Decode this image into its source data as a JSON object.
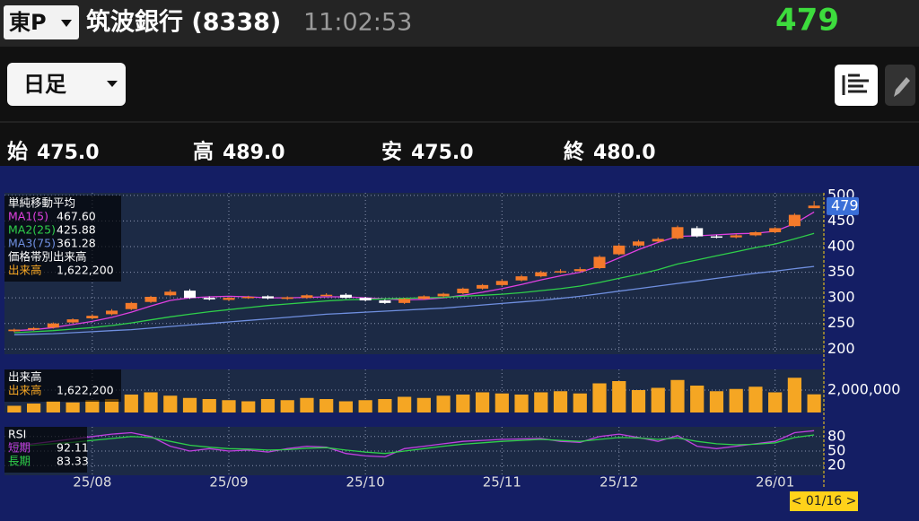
{
  "header": {
    "market": "東P",
    "name": "筑波銀行 (8338)",
    "time": "11:02:53",
    "price": 479
  },
  "toolbar": {
    "period": "日足"
  },
  "ohlc": [
    {
      "label": "始",
      "value": "475.0"
    },
    {
      "label": "高",
      "value": "489.0"
    },
    {
      "label": "安",
      "value": "475.0"
    },
    {
      "label": "終",
      "value": "480.0"
    }
  ],
  "cursor_label": "< 01/16 >",
  "chart_data": [
    {
      "type": "candlestick",
      "title": "単純移動平均",
      "categories": [
        null,
        null,
        null,
        null,
        "25/08",
        null,
        null,
        null,
        null,
        null,
        null,
        "25/09",
        null,
        null,
        null,
        null,
        null,
        null,
        "25/10",
        null,
        null,
        null,
        null,
        null,
        null,
        "25/11",
        null,
        null,
        null,
        null,
        null,
        "25/12",
        null,
        null,
        null,
        null,
        null,
        null,
        null,
        "26/01",
        null,
        null
      ],
      "open": [
        235,
        238,
        242,
        252,
        260,
        268,
        278,
        292,
        305,
        314,
        300,
        296,
        300,
        303,
        298,
        300,
        305,
        306,
        300,
        295,
        290,
        298,
        303,
        309,
        318,
        325,
        334,
        342,
        350,
        352,
        358,
        385,
        402,
        410,
        416,
        436,
        420,
        418,
        422,
        428,
        440,
        475
      ],
      "high": [
        240,
        243,
        252,
        260,
        268,
        278,
        292,
        304,
        316,
        317,
        303,
        301,
        304,
        305,
        303,
        307,
        309,
        309,
        302,
        297,
        300,
        305,
        310,
        320,
        327,
        336,
        345,
        353,
        356,
        360,
        383,
        405,
        413,
        418,
        441,
        440,
        423,
        425,
        430,
        438,
        465,
        489
      ],
      "low": [
        233,
        236,
        240,
        250,
        258,
        266,
        276,
        290,
        303,
        298,
        295,
        294,
        298,
        297,
        296,
        298,
        303,
        298,
        293,
        288,
        288,
        296,
        301,
        307,
        316,
        323,
        332,
        340,
        348,
        350,
        356,
        383,
        400,
        408,
        414,
        418,
        416,
        416,
        420,
        426,
        438,
        475
      ],
      "close": [
        238,
        241,
        250,
        258,
        265,
        275,
        290,
        302,
        312,
        300,
        297,
        300,
        302,
        299,
        301,
        305,
        306,
        300,
        295,
        290,
        298,
        303,
        308,
        318,
        325,
        333,
        342,
        350,
        352,
        356,
        380,
        402,
        410,
        415,
        438,
        420,
        418,
        422,
        428,
        436,
        462,
        480
      ],
      "up_color": "#f47a2b",
      "down_color": "#ffffff",
      "ylim": [
        190,
        505
      ],
      "yticks": [
        200,
        250,
        300,
        350,
        400,
        450,
        500
      ],
      "grid": true,
      "series": [
        {
          "name": "MA1(5)",
          "color": "#e040e0",
          "value_label": "467.60",
          "values": [
            236,
            238,
            242,
            248,
            254,
            262,
            272,
            284,
            295,
            300,
            302,
            303,
            302,
            300,
            300,
            301,
            302,
            302,
            300,
            298,
            296,
            297,
            300,
            305,
            311,
            318,
            326,
            335,
            343,
            350,
            362,
            378,
            394,
            408,
            420,
            421,
            423,
            425,
            426,
            430,
            445,
            467.6
          ]
        },
        {
          "name": "MA2(25)",
          "color": "#2fcf4a",
          "value_label": "425.88",
          "values": [
            232,
            234,
            236,
            239,
            242,
            246,
            251,
            257,
            263,
            268,
            273,
            277,
            281,
            285,
            288,
            291,
            294,
            296,
            297,
            298,
            299,
            300,
            301,
            303,
            305,
            307,
            310,
            314,
            318,
            323,
            330,
            338,
            346,
            355,
            366,
            374,
            382,
            390,
            398,
            405,
            415,
            425.88
          ]
        },
        {
          "name": "MA3(75)",
          "color": "#6f8fe0",
          "value_label": "361.28",
          "values": [
            228,
            229,
            230,
            232,
            234,
            236,
            238,
            241,
            244,
            247,
            250,
            253,
            256,
            259,
            262,
            265,
            268,
            270,
            272,
            274,
            276,
            278,
            280,
            283,
            286,
            289,
            292,
            295,
            299,
            303,
            308,
            313,
            318,
            323,
            328,
            333,
            338,
            343,
            348,
            352,
            357,
            361.28
          ]
        }
      ],
      "band_volume": {
        "title": "価格帯別出来高",
        "name": "出来高",
        "value_label": "1,622,200"
      }
    },
    {
      "type": "bar",
      "title": "出来高",
      "name": "出来高",
      "value_label": "1,622,200",
      "color": "#f5a623",
      "values": [
        600000,
        800000,
        1000000,
        900000,
        1100000,
        1200000,
        1600000,
        1800000,
        1500000,
        1300000,
        1200000,
        1100000,
        1000000,
        1200000,
        1100000,
        1300000,
        1200000,
        1000000,
        1100000,
        1200000,
        1400000,
        1300000,
        1500000,
        1600000,
        1800000,
        1700000,
        1600000,
        1800000,
        1900000,
        1700000,
        2600000,
        2800000,
        2000000,
        2200000,
        2900000,
        2400000,
        1900000,
        2100000,
        2300000,
        1800000,
        3100000,
        1622200
      ],
      "ylim": [
        0,
        3840000
      ],
      "yticks": [
        {
          "value": 2000000,
          "label": "2,000,000"
        }
      ]
    },
    {
      "type": "line",
      "title": "RSI",
      "ylim": [
        0,
        100
      ],
      "yticks": [
        20,
        50,
        80
      ],
      "series": [
        {
          "name": "短期",
          "color": "#c040e0",
          "value_label": "92.11",
          "values": [
            60,
            65,
            70,
            75,
            80,
            85,
            88,
            80,
            60,
            50,
            55,
            50,
            52,
            48,
            55,
            60,
            58,
            45,
            40,
            38,
            55,
            60,
            65,
            70,
            72,
            74,
            75,
            76,
            70,
            68,
            80,
            85,
            78,
            70,
            82,
            60,
            55,
            60,
            65,
            70,
            88,
            92.11
          ]
        },
        {
          "name": "長期",
          "color": "#2fcf4a",
          "value_label": "83.33",
          "values": [
            60,
            62,
            65,
            68,
            72,
            76,
            80,
            78,
            70,
            62,
            58,
            55,
            54,
            52,
            53,
            56,
            57,
            52,
            48,
            45,
            50,
            55,
            60,
            64,
            67,
            70,
            72,
            74,
            72,
            70,
            74,
            78,
            77,
            74,
            77,
            70,
            65,
            63,
            64,
            67,
            78,
            83.33
          ]
        }
      ]
    }
  ]
}
